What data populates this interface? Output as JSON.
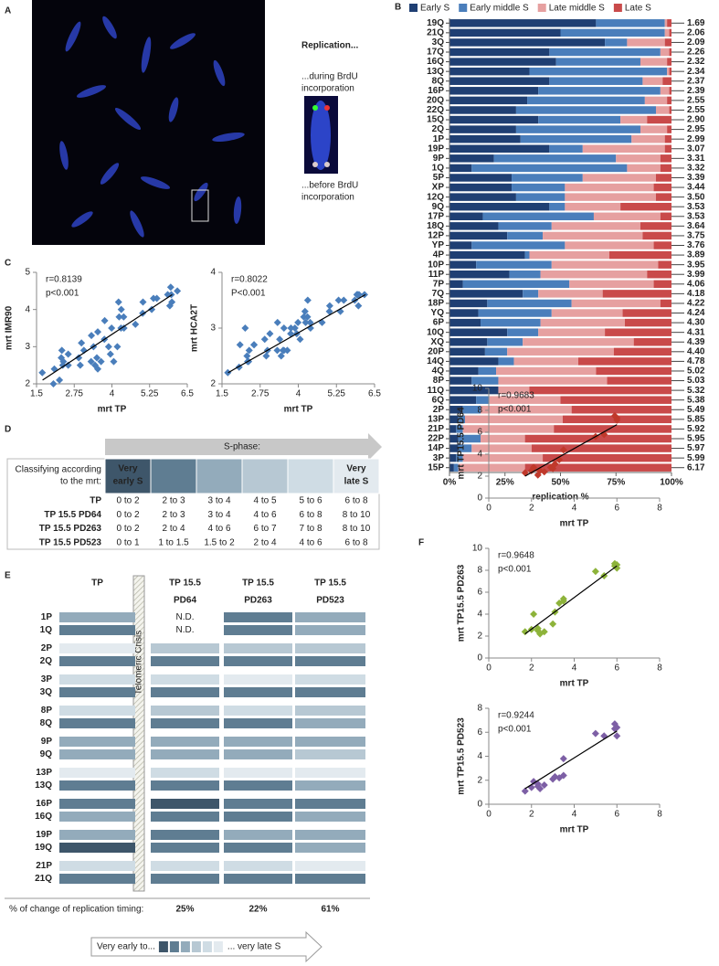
{
  "panel_labels": [
    "A",
    "B",
    "C",
    "D",
    "E",
    "F"
  ],
  "panel_a": {
    "title": "Replication...",
    "during": [
      "...during BrdU",
      "incorporation"
    ],
    "before": [
      "...before BrdU",
      "incorporation"
    ]
  },
  "table_d": {
    "arrow_label": "S-phase:",
    "corner": [
      "Classifying according",
      "to the mrt:"
    ],
    "header": [
      [
        "Very",
        "early S"
      ],
      null,
      null,
      null,
      null,
      [
        "Very",
        "late S"
      ]
    ],
    "header_colors": [
      "#3e566a",
      "#5f7d92",
      "#93abbb",
      "#b7c8d3",
      "#cfdce4",
      "#e3eaef"
    ],
    "rows": [
      {
        "label": "TP",
        "color": "#4a7ebb",
        "cells": [
          "0 to 2",
          "2 to 3",
          "3 to 4",
          "4 to 5",
          "5 to 6",
          "6 to 8"
        ]
      },
      {
        "label": "TP 15.5 PD64",
        "color": "#c0392b",
        "cells": [
          "0 to 2",
          "2 to 3",
          "3 to 4",
          "4 to 6",
          "6 to 8",
          "8 to 10"
        ]
      },
      {
        "label": "TP 15.5 PD263",
        "color": "#8db33a",
        "cells": [
          "0 to 2",
          "2 to 4",
          "4 to 6",
          "6 to 7",
          "7 to 8",
          "8 to 10"
        ]
      },
      {
        "label": "TP 15.5 PD523",
        "color": "#7d5fa5",
        "cells": [
          "0 to 1",
          "1 to 1.5",
          "1.5 to 2",
          "2 to 4",
          "4 to 6",
          "6 to 8"
        ]
      }
    ]
  },
  "chart_data": [
    {
      "type": "bar",
      "orientation": "horizontal",
      "stacked": true,
      "xlabel": "replication %",
      "categories": [
        "19Q",
        "21Q",
        "3Q",
        "17Q",
        "16Q",
        "13Q",
        "8Q",
        "16P",
        "20Q",
        "22Q",
        "15Q",
        "2Q",
        "1P",
        "19P",
        "9P",
        "1Q",
        "5P",
        "XP",
        "12Q",
        "9Q",
        "17P",
        "18Q",
        "12P",
        "YP",
        "4P",
        "10P",
        "11P",
        "7P",
        "7Q",
        "18P",
        "YQ",
        "6P",
        "10Q",
        "XQ",
        "20P",
        "14Q",
        "4Q",
        "8P",
        "11Q",
        "6Q",
        "2P",
        "13P",
        "21P",
        "22P",
        "14P",
        "3P",
        "15P"
      ],
      "mrt": [
        1.69,
        2.06,
        2.09,
        2.26,
        2.32,
        2.34,
        2.37,
        2.39,
        2.55,
        2.55,
        {
          "value": 2.9,
          "label": "2.90"
        },
        2.95,
        2.99,
        3.07,
        3.31,
        3.32,
        3.39,
        3.44,
        {
          "value": 3.5,
          "label": "3.50"
        },
        3.53,
        3.53,
        3.64,
        3.75,
        3.76,
        3.89,
        3.95,
        3.99,
        4.06,
        4.18,
        4.22,
        4.24,
        {
          "value": 4.3,
          "label": "4.30"
        },
        4.31,
        4.39,
        {
          "value": 4.4,
          "label": "4.40"
        },
        4.78,
        5.02,
        5.03,
        5.32,
        5.38,
        5.49,
        5.85,
        5.92,
        5.95,
        5.97,
        5.99,
        6.17
      ],
      "series": [
        {
          "name": "Early S",
          "color": "#1f3f73",
          "values": [
            66,
            50,
            70,
            45,
            48,
            36,
            45,
            40,
            35,
            30,
            40,
            30,
            32,
            45,
            20,
            10,
            28,
            28,
            30,
            45,
            15,
            22,
            26,
            10,
            34,
            12,
            27,
            6,
            33,
            17,
            13,
            14,
            26,
            17,
            16,
            22,
            13,
            10,
            22,
            12,
            6,
            4,
            3,
            4,
            4,
            3,
            2
          ]
        },
        {
          "name": "Early middle S",
          "color": "#4a7ebb",
          "values": [
            31,
            47,
            10,
            50,
            38,
            62,
            42,
            55,
            53,
            63,
            37,
            56,
            50,
            15,
            55,
            70,
            32,
            24,
            22,
            7,
            50,
            24,
            16,
            42,
            2,
            34,
            14,
            48,
            7,
            38,
            33,
            27,
            14,
            16,
            10,
            7,
            8,
            12,
            0,
            6,
            8,
            3,
            3,
            10,
            6,
            3,
            2
          ]
        },
        {
          "name": "Late middle S",
          "color": "#e6a0a0",
          "values": [
            1,
            2,
            17,
            4,
            12,
            1,
            9,
            4,
            10,
            6,
            12,
            12,
            15,
            37,
            20,
            15,
            33,
            40,
            41,
            25,
            30,
            40,
            45,
            40,
            36,
            48,
            48,
            38,
            29,
            40,
            32,
            38,
            30,
            50,
            48,
            29,
            45,
            49,
            14,
            32,
            41,
            44,
            41,
            20,
            27,
            36,
            30
          ]
        },
        {
          "name": "Late S",
          "color": "#c94a4a",
          "values": [
            2,
            1,
            3,
            1,
            2,
            1,
            4,
            1,
            2,
            1,
            11,
            2,
            3,
            3,
            5,
            5,
            7,
            8,
            7,
            23,
            5,
            14,
            13,
            8,
            28,
            6,
            11,
            8,
            31,
            5,
            22,
            21,
            30,
            17,
            26,
            42,
            34,
            29,
            64,
            50,
            45,
            49,
            53,
            66,
            63,
            58,
            66
          ]
        }
      ],
      "xlim": [
        0,
        100
      ],
      "xticks": [
        {
          "value": 0,
          "label": "0%"
        },
        {
          "value": 25,
          "label": "25%"
        },
        {
          "value": 50,
          "label": "50%"
        },
        {
          "value": 75,
          "label": "75%"
        },
        {
          "value": 100,
          "label": "100%"
        }
      ]
    },
    {
      "type": "scatter",
      "xlabel": "mrt TP",
      "ylabel": "mrt IMR90",
      "annotations": [
        "r=0.8139",
        "p<0.001"
      ],
      "series": [
        {
          "color": "#4a7ebb",
          "x": [
            1.69,
            2.06,
            2.09,
            2.26,
            2.32,
            2.34,
            2.37,
            2.39,
            2.55,
            2.55,
            2.9,
            2.95,
            2.99,
            3.07,
            3.31,
            3.32,
            3.39,
            3.44,
            3.5,
            3.53,
            3.53,
            3.64,
            3.75,
            3.76,
            3.89,
            3.95,
            3.99,
            4.06,
            4.18,
            4.22,
            4.24,
            4.3,
            4.31,
            4.39,
            4.4,
            4.78,
            5.02,
            5.03,
            5.32,
            5.38,
            5.49,
            5.85,
            5.92,
            5.95,
            5.97,
            5.99,
            6.17
          ],
          "values": [
            2.3,
            2.0,
            2.4,
            2.1,
            2.7,
            2.9,
            2.5,
            2.6,
            2.5,
            2.8,
            2.7,
            2.5,
            3.1,
            2.9,
            2.6,
            3.3,
            3.0,
            2.5,
            2.7,
            3.4,
            2.4,
            2.6,
            3.2,
            3.7,
            3.0,
            2.8,
            3.5,
            2.6,
            3.0,
            4.2,
            3.8,
            3.5,
            4.0,
            3.8,
            3.5,
            3.6,
            3.9,
            4.2,
            4.0,
            4.3,
            4.3,
            4.4,
            4.1,
            4.6,
            4.4,
            4.2,
            4.5
          ]
        }
      ],
      "trendline": {
        "x": [
          1.7,
          6
        ],
        "y": [
          2.1,
          4.4
        ]
      },
      "xlim": [
        1.5,
        6.5
      ],
      "xticks": [
        1.5,
        2.75,
        4,
        5.25,
        6.5
      ],
      "ylim": [
        2,
        5
      ],
      "yticks": [
        2,
        3,
        4,
        5
      ]
    },
    {
      "type": "scatter",
      "xlabel": "mrt TP",
      "ylabel": "mrt HCA2T",
      "annotations": [
        "r=0.8022",
        "P<0.001"
      ],
      "series": [
        {
          "color": "#4a7ebb",
          "x": [
            1.69,
            2.06,
            2.09,
            2.26,
            2.32,
            2.34,
            2.37,
            2.39,
            2.55,
            2.55,
            2.9,
            2.95,
            2.99,
            3.07,
            3.31,
            3.32,
            3.39,
            3.44,
            3.5,
            3.53,
            3.53,
            3.64,
            3.75,
            3.76,
            3.89,
            3.95,
            3.99,
            4.06,
            4.18,
            4.22,
            4.24,
            4.3,
            4.31,
            4.39,
            4.4,
            4.78,
            5.02,
            5.03,
            5.32,
            5.38,
            5.49,
            5.85,
            5.92,
            5.95,
            5.97,
            5.99,
            6.17
          ],
          "values": [
            2.2,
            2.3,
            2.7,
            3.0,
            2.5,
            2.4,
            2.4,
            2.6,
            2.7,
            2.7,
            2.8,
            2.5,
            2.6,
            2.9,
            2.6,
            3.1,
            2.8,
            2.5,
            2.6,
            3.0,
            2.6,
            2.6,
            2.9,
            3.0,
            3.0,
            2.9,
            3.1,
            2.8,
            3.2,
            3.3,
            3.1,
            3.2,
            3.5,
            3.1,
            3.0,
            3.1,
            3.3,
            3.4,
            3.5,
            3.3,
            3.5,
            3.5,
            3.6,
            3.6,
            3.4,
            3.6,
            3.6
          ]
        }
      ],
      "trendline": {
        "x": [
          1.7,
          6.2
        ],
        "y": [
          2.2,
          3.6
        ]
      },
      "xlim": [
        1.5,
        6.5
      ],
      "xticks": [
        1.5,
        2.75,
        4,
        5.25,
        6.5
      ],
      "ylim": [
        2,
        4
      ],
      "yticks": [
        2,
        3,
        4
      ]
    },
    {
      "type": "scatter",
      "xlabel": "mrt TP",
      "ylabel": "mrt TP15.5 PD64",
      "annotations": [
        "r=0.9683",
        "p<0.001"
      ],
      "series": [
        {
          "color": "#c0392b",
          "x": [
            1.7,
            2.0,
            2.1,
            2.3,
            2.4,
            2.6,
            2.9,
            3.0,
            3.1,
            3.3,
            3.5,
            5.0,
            5.4,
            5.9,
            6.0,
            6.0
          ],
          "values": [
            2.3,
            2.5,
            2.8,
            2.1,
            2.5,
            2.4,
            2.8,
            2.7,
            3.1,
            3.5,
            4.4,
            5.6,
            5.8,
            7.5,
            7.3,
            7.1
          ]
        }
      ],
      "trendline": {
        "x": [
          1.7,
          6
        ],
        "y": [
          2.0,
          6.7
        ]
      },
      "xlim": [
        0,
        8
      ],
      "xticks": [
        0,
        2,
        4,
        6,
        8
      ],
      "ylim": [
        0,
        10
      ],
      "yticks": [
        0,
        2,
        4,
        6,
        8,
        10
      ]
    },
    {
      "type": "scatter",
      "xlabel": "mrt TP",
      "ylabel": "mrt TP15.5 PD263",
      "annotations": [
        "r=0.9648",
        "p<0.001"
      ],
      "series": [
        {
          "color": "#8db33a",
          "x": [
            1.7,
            2.0,
            2.1,
            2.3,
            2.3,
            2.4,
            2.6,
            3.0,
            3.1,
            3.3,
            3.5,
            3.5,
            5.0,
            5.4,
            5.9,
            5.9,
            6.0,
            6.0
          ],
          "values": [
            2.4,
            2.6,
            4.0,
            2.5,
            2.7,
            2.2,
            2.4,
            3.1,
            4.2,
            5.0,
            5.2,
            5.4,
            7.9,
            7.5,
            8.4,
            8.6,
            8.5,
            8.2
          ]
        }
      ],
      "trendline": {
        "x": [
          1.7,
          6
        ],
        "y": [
          2.2,
          8.4
        ]
      },
      "xlim": [
        0,
        8
      ],
      "xticks": [
        0,
        2,
        4,
        6,
        8
      ],
      "ylim": [
        0,
        10
      ],
      "yticks": [
        0,
        2,
        4,
        6,
        8,
        10
      ]
    },
    {
      "type": "scatter",
      "xlabel": "mrt TP",
      "ylabel": "mrt TP15.5 PD523",
      "annotations": [
        "r=0.9244",
        "p<0.001"
      ],
      "series": [
        {
          "color": "#7d5fa5",
          "x": [
            1.7,
            2.0,
            2.1,
            2.3,
            2.3,
            2.4,
            2.6,
            3.0,
            3.1,
            3.3,
            3.5,
            3.5,
            5.0,
            5.4,
            5.9,
            5.9,
            6.0,
            6.0
          ],
          "values": [
            1.1,
            1.4,
            1.9,
            1.5,
            1.7,
            1.3,
            1.6,
            2.1,
            2.3,
            2.2,
            2.4,
            3.8,
            5.9,
            5.7,
            6.7,
            6.3,
            6.4,
            5.7
          ]
        }
      ],
      "trendline": {
        "x": [
          1.7,
          6
        ],
        "y": [
          1.3,
          6.1
        ]
      },
      "xlim": [
        0,
        8
      ],
      "xticks": [
        0,
        2,
        4,
        6,
        8
      ],
      "ylim": [
        0,
        8
      ],
      "yticks": [
        0,
        2,
        4,
        6,
        8
      ]
    },
    {
      "type": "heatmap",
      "columns": [
        {
          "lines": [
            "TP"
          ],
          "color": "#4a7ebb"
        },
        {
          "lines": [
            "TP 15.5",
            "PD64"
          ],
          "color": "#c0392b"
        },
        {
          "lines": [
            "TP 15.5",
            "PD263"
          ],
          "color": "#8db33a"
        },
        {
          "lines": [
            "TP 15.5",
            "PD523"
          ],
          "color": "#7d5fa5"
        }
      ],
      "categories": [
        "1P",
        "1Q",
        "2P",
        "2Q",
        "3P",
        "3Q",
        "8P",
        "8Q",
        "9P",
        "9Q",
        "13P",
        "13Q",
        "16P",
        "16Q",
        "19P",
        "19Q",
        "21P",
        "21Q"
      ],
      "values": [
        [
          2,
          null,
          1,
          2
        ],
        [
          1,
          null,
          1,
          2
        ],
        [
          5,
          3,
          3,
          3
        ],
        [
          1,
          1,
          1,
          1
        ],
        [
          4,
          4,
          5,
          4
        ],
        [
          1,
          1,
          1,
          1
        ],
        [
          4,
          3,
          4,
          3
        ],
        [
          1,
          1,
          1,
          2
        ],
        [
          2,
          2,
          2,
          2
        ],
        [
          2,
          2,
          2,
          3
        ],
        [
          5,
          4,
          5,
          5
        ],
        [
          1,
          1,
          1,
          2
        ],
        [
          1,
          0,
          1,
          1
        ],
        [
          2,
          1,
          1,
          2
        ],
        [
          2,
          1,
          2,
          2
        ],
        [
          0,
          1,
          1,
          2
        ],
        [
          4,
          4,
          4,
          5
        ],
        [
          1,
          1,
          1,
          1
        ]
      ],
      "value_labels": [
        [
          null,
          "N.D.",
          null,
          null
        ],
        [
          null,
          "N.D.",
          null,
          null
        ],
        [
          null,
          null,
          null,
          null
        ],
        [
          null,
          null,
          null,
          null
        ],
        [
          null,
          null,
          null,
          null
        ],
        [
          null,
          null,
          null,
          null
        ],
        [
          null,
          null,
          null,
          null
        ],
        [
          null,
          null,
          null,
          null
        ],
        [
          null,
          null,
          null,
          null
        ],
        [
          null,
          null,
          null,
          null
        ],
        [
          null,
          null,
          null,
          null
        ],
        [
          null,
          null,
          null,
          null
        ],
        [
          null,
          null,
          null,
          null
        ],
        [
          null,
          null,
          null,
          null
        ],
        [
          null,
          null,
          null,
          null
        ],
        [
          null,
          null,
          null,
          null
        ],
        [
          null,
          null,
          null,
          null
        ],
        [
          null,
          null,
          null,
          null
        ]
      ],
      "palette": [
        "#3e566a",
        "#5f7d92",
        "#93abbb",
        "#b7c8d3",
        "#cfdce4",
        "#e3eaef"
      ],
      "crisis_label": "Telomeric Crisis",
      "footer_label": "% of change of replication timing:",
      "footer_values": [
        null,
        "25%",
        "22%",
        "61%"
      ],
      "legend_start": "Very early to...",
      "legend_end": "... very late S"
    }
  ]
}
